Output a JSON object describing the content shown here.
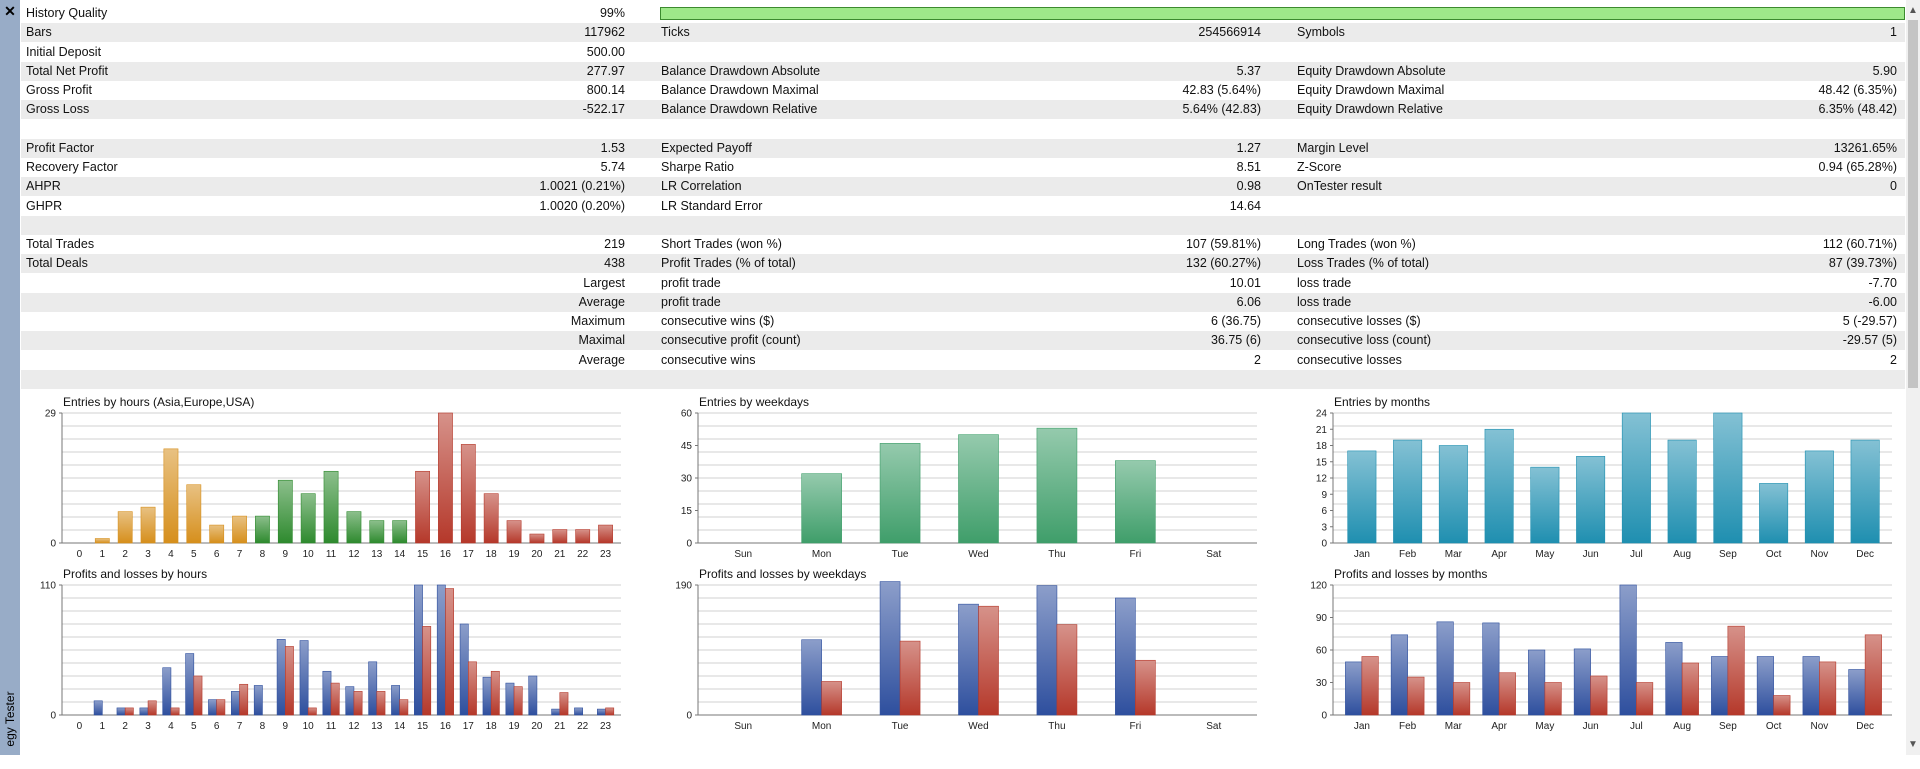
{
  "window": {
    "close_icon": "close-icon",
    "panel_title": "Strategy Tester",
    "panel_title_visible": "egy Tester"
  },
  "stats": [
    [
      "History Quality",
      "99%",
      "",
      "",
      "",
      ""
    ],
    [
      "Bars",
      "117962",
      "Ticks",
      "254566914",
      "Symbols",
      "1"
    ],
    [
      "Initial Deposit",
      "500.00",
      "",
      "",
      "",
      ""
    ],
    [
      "Total Net Profit",
      "277.97",
      "Balance Drawdown Absolute",
      "5.37",
      "Equity Drawdown Absolute",
      "5.90"
    ],
    [
      "Gross Profit",
      "800.14",
      "Balance Drawdown Maximal",
      "42.83 (5.64%)",
      "Equity Drawdown Maximal",
      "48.42 (6.35%)"
    ],
    [
      "Gross Loss",
      "-522.17",
      "Balance Drawdown Relative",
      "5.64% (42.83)",
      "Equity Drawdown Relative",
      "6.35% (48.42)"
    ],
    [
      "",
      "",
      "",
      "",
      "",
      ""
    ],
    [
      "Profit Factor",
      "1.53",
      "Expected Payoff",
      "1.27",
      "Margin Level",
      "13261.65%"
    ],
    [
      "Recovery Factor",
      "5.74",
      "Sharpe Ratio",
      "8.51",
      "Z-Score",
      "0.94 (65.28%)"
    ],
    [
      "AHPR",
      "1.0021 (0.21%)",
      "LR Correlation",
      "0.98",
      "OnTester result",
      "0"
    ],
    [
      "GHPR",
      "1.0020 (0.20%)",
      "LR Standard Error",
      "14.64",
      "",
      ""
    ],
    [
      "",
      "",
      "",
      "",
      "",
      ""
    ],
    [
      "Total Trades",
      "219",
      "Short Trades (won %)",
      "107 (59.81%)",
      "Long Trades (won %)",
      "112 (60.71%)"
    ],
    [
      "Total Deals",
      "438",
      "Profit Trades (% of total)",
      "132 (60.27%)",
      "Loss Trades (% of total)",
      "87 (39.73%)"
    ],
    [
      "",
      "Largest",
      "profit trade",
      "10.01",
      "loss trade",
      "-7.70"
    ],
    [
      "",
      "Average",
      "profit trade",
      "6.06",
      "loss trade",
      "-6.00"
    ],
    [
      "",
      "Maximum",
      "consecutive wins ($)",
      "6 (36.75)",
      "consecutive losses ($)",
      "5 (-29.57)"
    ],
    [
      "",
      "Maximal",
      "consecutive profit (count)",
      "36.75 (6)",
      "consecutive loss (count)",
      "-29.57 (5)"
    ],
    [
      "",
      "Average",
      "consecutive wins",
      "2",
      "consecutive losses",
      "2"
    ],
    [
      "",
      "",
      "",
      "",
      "",
      ""
    ]
  ],
  "history_quality_fill": 0.99,
  "colors": {
    "hq_bar": "#9ee889",
    "hours_asia": "#d68f1c",
    "hours_europe": "#2e8a2e",
    "hours_usa": "#b5382a",
    "weekdays": "#3f9e6a",
    "months": "#1f8fb0",
    "profit": "#2e4f9e",
    "loss": "#b5382a"
  },
  "chart_data": [
    {
      "type": "bar",
      "title": "Entries by hours (Asia,Europe,USA)",
      "categories": [
        "0",
        "1",
        "2",
        "3",
        "4",
        "5",
        "6",
        "7",
        "8",
        "9",
        "10",
        "11",
        "12",
        "13",
        "14",
        "15",
        "16",
        "17",
        "18",
        "19",
        "20",
        "21",
        "22",
        "23"
      ],
      "values": [
        0,
        1,
        7,
        8,
        21,
        13,
        4,
        6,
        6,
        14,
        11,
        16,
        7,
        5,
        5,
        16,
        29,
        22,
        11,
        5,
        2,
        3,
        3,
        4
      ],
      "groups": [
        "asia",
        "asia",
        "asia",
        "asia",
        "asia",
        "asia",
        "asia",
        "asia",
        "europe",
        "europe",
        "europe",
        "europe",
        "europe",
        "europe",
        "europe",
        "usa",
        "usa",
        "usa",
        "usa",
        "usa",
        "usa",
        "usa",
        "usa",
        "usa"
      ],
      "yticks": [
        "0",
        "29"
      ],
      "ylim": [
        0,
        29
      ]
    },
    {
      "type": "bar",
      "title": "Entries by weekdays",
      "categories": [
        "Sun",
        "Mon",
        "Tue",
        "Wed",
        "Thu",
        "Fri",
        "Sat"
      ],
      "values": [
        0,
        32,
        46,
        50,
        53,
        38,
        0
      ],
      "yticks": [
        "0",
        "15",
        "30",
        "45",
        "60"
      ],
      "ylim": [
        0,
        60
      ]
    },
    {
      "type": "bar",
      "title": "Entries by months",
      "categories": [
        "Jan",
        "Feb",
        "Mar",
        "Apr",
        "May",
        "Jun",
        "Jul",
        "Aug",
        "Sep",
        "Oct",
        "Nov",
        "Dec"
      ],
      "values": [
        17,
        19,
        18,
        21,
        14,
        16,
        24,
        19,
        24,
        11,
        17,
        19
      ],
      "yticks": [
        "0",
        "3",
        "6",
        "9",
        "12",
        "15",
        "18",
        "21",
        "24"
      ],
      "ylim": [
        0,
        24
      ]
    },
    {
      "type": "bar",
      "title": "Profits and losses by hours",
      "categories": [
        "0",
        "1",
        "2",
        "3",
        "4",
        "5",
        "6",
        "7",
        "8",
        "9",
        "10",
        "11",
        "12",
        "13",
        "14",
        "15",
        "16",
        "17",
        "18",
        "19",
        "20",
        "21",
        "22",
        "23"
      ],
      "series": [
        {
          "values": [
            0,
            12,
            6,
            6,
            40,
            52,
            13,
            20,
            25,
            64,
            63,
            37,
            24,
            45,
            25,
            110,
            110,
            77,
            32,
            27,
            33,
            5,
            6,
            5
          ]
        },
        {
          "values": [
            0,
            0,
            6,
            12,
            6,
            33,
            13,
            26,
            0,
            58,
            6,
            27,
            20,
            20,
            13,
            75,
            107,
            45,
            37,
            24,
            0,
            19,
            0,
            6
          ]
        }
      ],
      "yticks": [
        "0",
        "110"
      ],
      "ylim": [
        0,
        110
      ]
    },
    {
      "type": "bar",
      "title": "Profits and losses by weekdays",
      "categories": [
        "Sun",
        "Mon",
        "Tue",
        "Wed",
        "Thu",
        "Fri",
        "Sat"
      ],
      "series": [
        {
          "values": [
            0,
            110,
            195,
            162,
            189,
            171,
            0
          ]
        },
        {
          "values": [
            0,
            49,
            108,
            159,
            132,
            80,
            0
          ]
        }
      ],
      "yticks": [
        "0",
        "190"
      ],
      "ylim": [
        0,
        190
      ]
    },
    {
      "type": "bar",
      "title": "Profits and losses by months",
      "categories": [
        "Jan",
        "Feb",
        "Mar",
        "Apr",
        "May",
        "Jun",
        "Jul",
        "Aug",
        "Sep",
        "Oct",
        "Nov",
        "Dec"
      ],
      "series": [
        {
          "values": [
            49,
            74,
            86,
            85,
            60,
            61,
            120,
            67,
            54,
            54,
            54,
            42
          ]
        },
        {
          "values": [
            54,
            35,
            30,
            39,
            30,
            36,
            30,
            48,
            82,
            18,
            49,
            74
          ]
        }
      ],
      "yticks": [
        "0",
        "30",
        "60",
        "90",
        "120"
      ],
      "ylim": [
        0,
        120
      ]
    }
  ]
}
